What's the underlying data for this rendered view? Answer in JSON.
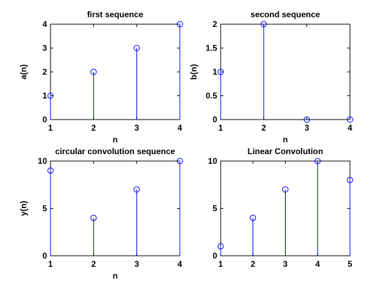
{
  "colors": {
    "stem": "#0000ff",
    "axes": "#000000",
    "background": "#ffffff"
  },
  "chart_data": [
    {
      "type": "stem",
      "title": "first sequence",
      "xlabel": "n",
      "ylabel": "a(n)",
      "x": [
        1,
        2,
        3,
        4
      ],
      "values": [
        1,
        2,
        3,
        4
      ],
      "xlim": [
        1,
        4
      ],
      "ylim": [
        0,
        4
      ],
      "xticks": [
        "1",
        "2",
        "3",
        "4"
      ],
      "yticks": [
        "0",
        "1",
        "2",
        "3",
        "4"
      ],
      "grid": false
    },
    {
      "type": "stem",
      "title": "second sequence",
      "xlabel": "n",
      "ylabel": "b(n)",
      "x": [
        1,
        2,
        3,
        4
      ],
      "values": [
        1,
        2,
        0,
        0
      ],
      "xlim": [
        1,
        4
      ],
      "ylim": [
        0,
        2
      ],
      "xticks": [
        "1",
        "2",
        "3",
        "4"
      ],
      "yticks": [
        "0",
        "0.5",
        "1",
        "1.5",
        "2"
      ],
      "grid": false
    },
    {
      "type": "stem",
      "title": "circular convolution sequence",
      "xlabel": "n",
      "ylabel": "y(n)",
      "x": [
        1,
        2,
        3,
        4
      ],
      "values": [
        9,
        4,
        7,
        10
      ],
      "xlim": [
        1,
        4
      ],
      "ylim": [
        0,
        10
      ],
      "xticks": [
        "1",
        "2",
        "3",
        "4"
      ],
      "yticks": [
        "0",
        "5",
        "10"
      ],
      "grid": false
    },
    {
      "type": "stem",
      "title": "Linear Convolution",
      "xlabel": "",
      "ylabel": "",
      "x": [
        1,
        2,
        3,
        4,
        5
      ],
      "values": [
        1,
        4,
        7,
        10,
        8
      ],
      "xlim": [
        1,
        5
      ],
      "ylim": [
        0,
        10
      ],
      "xticks": [
        "1",
        "2",
        "3",
        "4",
        "5"
      ],
      "yticks": [
        "0",
        "5",
        "10"
      ],
      "grid": false
    }
  ]
}
